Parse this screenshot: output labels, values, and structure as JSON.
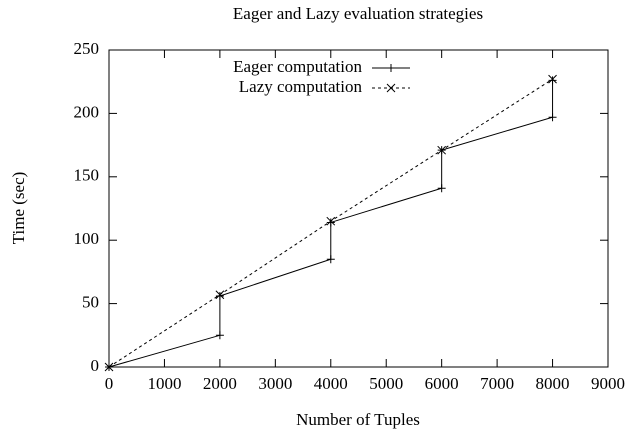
{
  "chart_data": {
    "type": "line",
    "title": "Eager and Lazy evaluation strategies",
    "xlabel": "Number of Tuples",
    "ylabel": "Time (sec)",
    "xlim": [
      0,
      9000
    ],
    "xticks": [
      0,
      1000,
      2000,
      3000,
      4000,
      5000,
      6000,
      7000,
      8000,
      9000
    ],
    "ylim": [
      0,
      250
    ],
    "yticks": [
      0,
      50,
      100,
      150,
      200,
      250
    ],
    "legend": "top-left",
    "series": [
      {
        "name": "Eager computation",
        "color": "#000000",
        "dashed": false,
        "marker": "plus",
        "x": [
          0,
          2000,
          2000,
          4000,
          4000,
          6000,
          6000,
          8000,
          8000
        ],
        "values": [
          0,
          25,
          56,
          85,
          114,
          141,
          171,
          197,
          226
        ]
      },
      {
        "name": "Lazy computation",
        "color": "#000000",
        "dashed": true,
        "marker": "cross",
        "x": [
          0,
          2000,
          4000,
          6000,
          8000
        ],
        "values": [
          0,
          57,
          115,
          171,
          227
        ]
      }
    ]
  }
}
